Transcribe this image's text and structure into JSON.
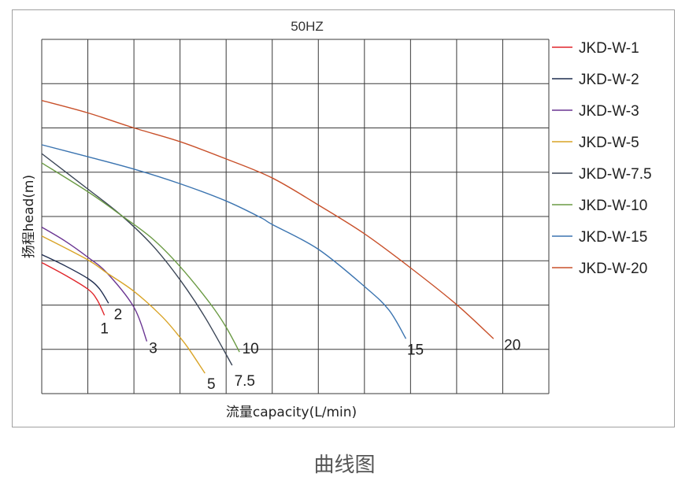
{
  "chart_data": {
    "type": "line",
    "title": "50HZ",
    "xlabel": "流量capacity(L/min)",
    "ylabel": "扬程head(m)",
    "xlim": [
      0,
      11
    ],
    "ylim": [
      0,
      8
    ],
    "grid": true,
    "axis_tick_labels": false,
    "legend_position": "right",
    "series": [
      {
        "name": "JKD-W-1",
        "end_label": "1",
        "color": "#e0262b",
        "points": [
          [
            0,
            2.96
          ],
          [
            0.5,
            2.68
          ],
          [
            1,
            2.36
          ],
          [
            1.2,
            2.12
          ],
          [
            1.36,
            1.77
          ]
        ]
      },
      {
        "name": "JKD-W-2",
        "end_label": "2",
        "color": "#1f2d4f",
        "points": [
          [
            0,
            3.14
          ],
          [
            0.5,
            2.89
          ],
          [
            1,
            2.6
          ],
          [
            1.25,
            2.37
          ],
          [
            1.45,
            2.04
          ]
        ]
      },
      {
        "name": "JKD-W-3",
        "end_label": "3",
        "color": "#6a3592",
        "points": [
          [
            0,
            3.76
          ],
          [
            0.5,
            3.45
          ],
          [
            1,
            3.08
          ],
          [
            1.42,
            2.72
          ],
          [
            2.0,
            1.95
          ],
          [
            2.28,
            1.18
          ]
        ]
      },
      {
        "name": "JKD-W-5",
        "end_label": "5",
        "color": "#d9a427",
        "points": [
          [
            0,
            3.56
          ],
          [
            1,
            3.02
          ],
          [
            1.42,
            2.72
          ],
          [
            2.0,
            2.31
          ],
          [
            2.6,
            1.75
          ],
          [
            3.0,
            1.27
          ],
          [
            3.19,
            1.01
          ],
          [
            3.54,
            0.46
          ]
        ]
      },
      {
        "name": "JKD-W-7.5",
        "end_label": "7.5",
        "color": "#3a4556",
        "points": [
          [
            0,
            5.42
          ],
          [
            1,
            4.62
          ],
          [
            1.72,
            4.03
          ],
          [
            2.4,
            3.35
          ],
          [
            3.0,
            2.57
          ],
          [
            3.55,
            1.71
          ],
          [
            4.13,
            0.64
          ]
        ]
      },
      {
        "name": "JKD-W-10",
        "end_label": "10",
        "color": "#6a9a43",
        "points": [
          [
            0,
            5.21
          ],
          [
            1,
            4.56
          ],
          [
            1.72,
            4.03
          ],
          [
            2.4,
            3.5
          ],
          [
            3.0,
            2.87
          ],
          [
            3.65,
            2.04
          ],
          [
            4.0,
            1.5
          ],
          [
            4.29,
            0.94
          ]
        ]
      },
      {
        "name": "JKD-W-15",
        "end_label": "15",
        "color": "#3b74b0",
        "points": [
          [
            0,
            5.62
          ],
          [
            1,
            5.35
          ],
          [
            2,
            5.07
          ],
          [
            3,
            4.74
          ],
          [
            4,
            4.35
          ],
          [
            4.76,
            3.97
          ],
          [
            5,
            3.82
          ],
          [
            6,
            3.26
          ],
          [
            7,
            2.42
          ],
          [
            7.53,
            1.89
          ],
          [
            7.9,
            1.24
          ]
        ]
      },
      {
        "name": "JKD-W-20",
        "end_label": "20",
        "color": "#c8502a",
        "points": [
          [
            0,
            6.62
          ],
          [
            1,
            6.34
          ],
          [
            2,
            6.0
          ],
          [
            3,
            5.69
          ],
          [
            4,
            5.3
          ],
          [
            5,
            4.87
          ],
          [
            6,
            4.26
          ],
          [
            7,
            3.61
          ],
          [
            8,
            2.84
          ],
          [
            9,
            2.01
          ],
          [
            9.8,
            1.24
          ]
        ]
      }
    ]
  },
  "caption": "曲线图"
}
